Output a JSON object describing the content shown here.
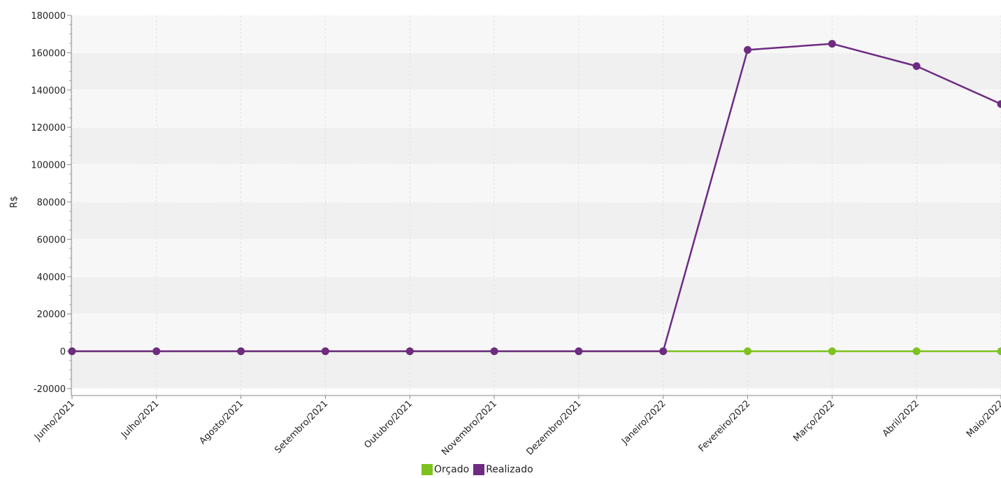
{
  "chart_data": {
    "type": "line",
    "ylabel": "R$",
    "xlabel": "",
    "ylim": [
      -20000,
      180000
    ],
    "yticks": [
      -20000,
      0,
      20000,
      40000,
      60000,
      80000,
      100000,
      120000,
      140000,
      160000,
      180000
    ],
    "categories": [
      "Junho/2021",
      "Julho/2021",
      "Agosto/2021",
      "Setembro/2021",
      "Outubro/2021",
      "Novembro/2021",
      "Dezembro/2021",
      "Janeiro/2022",
      "Fevereiro/2022",
      "Março/2022",
      "Abril/2022",
      "Maio/2022"
    ],
    "series": [
      {
        "name": "Orçado",
        "color": "#7DC21E",
        "values": [
          0,
          0,
          0,
          0,
          0,
          0,
          0,
          0,
          0,
          0,
          0,
          0
        ]
      },
      {
        "name": "Realizado",
        "color": "#6E2B82",
        "values": [
          0,
          0,
          0,
          0,
          0,
          0,
          0,
          0,
          161500,
          164800,
          152800,
          132500
        ]
      }
    ],
    "grid": true,
    "legend_position": "bottom-center"
  }
}
